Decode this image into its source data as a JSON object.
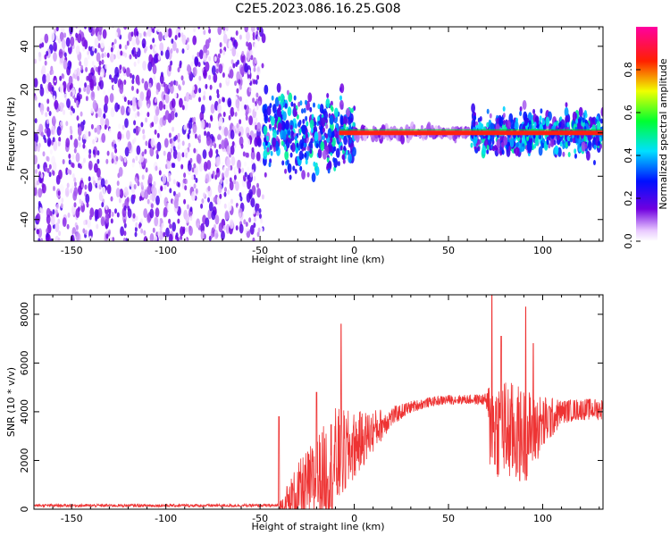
{
  "title": "C2E5.2023.086.16.25.G08",
  "chart_data": [
    {
      "type": "heatmap",
      "xlabel": "Height of straight line (km)",
      "ylabel": "Frequency (Hz)",
      "xlim": [
        -170,
        132
      ],
      "ylim": [
        -50,
        49
      ],
      "x_ticks": [
        -150,
        -100,
        -50,
        0,
        50,
        100
      ],
      "y_ticks": [
        -40,
        -20,
        0,
        20,
        40
      ],
      "x_tick_labels": [
        "-150",
        "-100",
        "-50",
        "0",
        "50",
        "100"
      ],
      "y_tick_labels": [
        "-40",
        "-20",
        "0",
        "20",
        "40"
      ],
      "regions": [
        {
          "x": [
            -170,
            -48
          ],
          "freq_spread": 50,
          "amplitude_range": [
            0.0,
            0.2
          ]
        },
        {
          "x": [
            -48,
            0
          ],
          "freq_spread": 18,
          "amplitude_range": [
            0.1,
            0.5
          ]
        },
        {
          "x": [
            0,
            62
          ],
          "freq_spread": 3,
          "amplitude_range": [
            0.05,
            0.15
          ]
        },
        {
          "x": [
            62,
            132
          ],
          "freq_spread": 10,
          "amplitude_range": [
            0.1,
            0.5
          ]
        }
      ],
      "central_band": {
        "x": [
          -8,
          132
        ],
        "frequency": 0,
        "amplitude": 1.0
      },
      "colorbar": {
        "label": "Normalized spectral amplitude",
        "ticks": [
          0.0,
          0.2,
          0.4,
          0.6,
          0.8
        ],
        "tick_labels": [
          "0.0",
          "0.2",
          "0.4",
          "0.6",
          "0.8"
        ],
        "range": [
          0,
          1
        ]
      }
    },
    {
      "type": "line",
      "xlabel": "Height of straight line (km)",
      "ylabel": "SNR (10 * v/v)",
      "xlim": [
        -170,
        132
      ],
      "ylim": [
        0,
        8800
      ],
      "x_ticks": [
        -150,
        -100,
        -50,
        0,
        50,
        100
      ],
      "y_ticks": [
        0,
        2000,
        4000,
        6000,
        8000
      ],
      "x_tick_labels": [
        "-150",
        "-100",
        "-50",
        "0",
        "50",
        "100"
      ],
      "y_tick_labels": [
        "0",
        "2000",
        "4000",
        "6000",
        "8000"
      ],
      "color": "#ee3333",
      "envelope": {
        "x": [
          -170,
          -45,
          -40,
          -36,
          -30,
          -20,
          -10,
          0,
          10,
          20,
          30,
          40,
          50,
          60,
          70,
          72,
          80,
          90,
          100,
          110,
          120,
          132
        ],
        "baseline": [
          150,
          150,
          150,
          200,
          600,
          1200,
          1900,
          2600,
          3200,
          3800,
          4200,
          4400,
          4500,
          4500,
          4500,
          3500,
          3200,
          3000,
          3500,
          4000,
          4100,
          4100
        ],
        "amplitude": [
          60,
          60,
          60,
          800,
          1300,
          1800,
          2300,
          1400,
          900,
          400,
          250,
          200,
          200,
          200,
          250,
          2000,
          2200,
          2000,
          1200,
          500,
          450,
          450
        ]
      },
      "peaks": [
        {
          "x": -40,
          "y": 3800
        },
        {
          "x": -20,
          "y": 4800
        },
        {
          "x": -7,
          "y": 7600
        },
        {
          "x": 73,
          "y": 8800
        },
        {
          "x": 78,
          "y": 7100
        },
        {
          "x": 91,
          "y": 8300
        },
        {
          "x": 95,
          "y": 6800
        }
      ]
    }
  ]
}
